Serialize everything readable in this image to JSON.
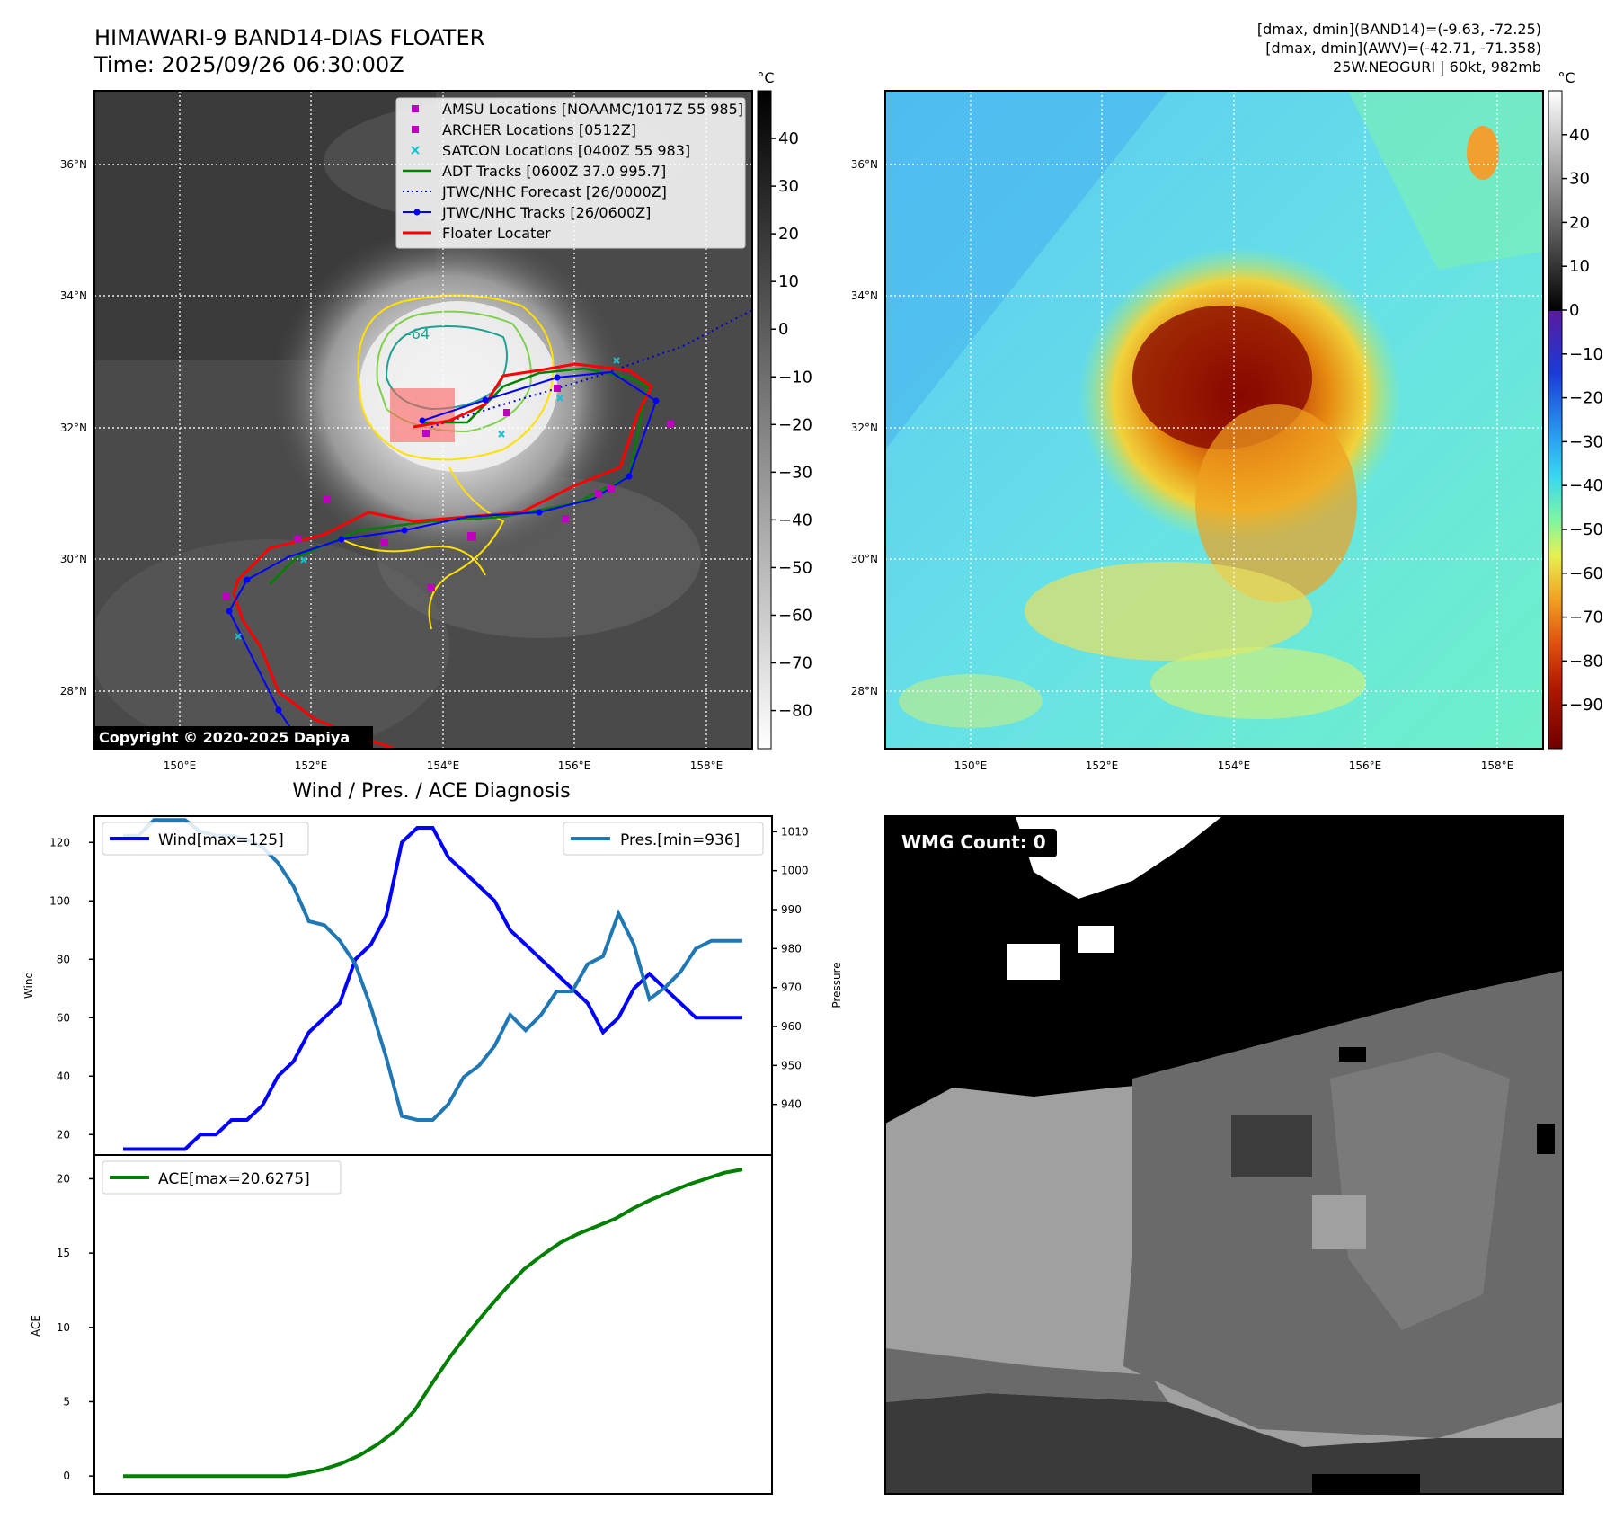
{
  "header": {
    "title_line1": "HIMAWARI-9 BAND14-DIAS FLOATER",
    "title_line2": "Time: 2025/09/26 06:30:00Z",
    "info_line1": "[dmax, dmin](BAND14)=(-9.63, -72.25)",
    "info_line2": "[dmax, dmin](AWV)=(-42.71, -71.358)",
    "info_line3": "25W.NEOGURI | 60kt, 982mb"
  },
  "map": {
    "lat_labels": [
      "36°N",
      "34°N",
      "32°N",
      "30°N",
      "28°N"
    ],
    "lon_labels": [
      "150°E",
      "152°E",
      "154°E",
      "156°E",
      "158°E"
    ],
    "contour_label": "-64",
    "copyright": "Copyright © 2020-2025 Dapiya",
    "legend": [
      {
        "label": "AMSU Locations [NOAAMC/1017Z 55 985]",
        "icon": "square-marker",
        "color": "#bf00bf"
      },
      {
        "label": "ARCHER Locations [0512Z]",
        "icon": "square-marker",
        "color": "#bf00bf"
      },
      {
        "label": "SATCON Locations [0400Z 55 983]",
        "icon": "x-marker",
        "color": "#17becf"
      },
      {
        "label": "ADT Tracks [0600Z 37.0 995.7]",
        "icon": "solid-line",
        "color": "#008000"
      },
      {
        "label": "JTWC/NHC Forecast [26/0000Z]",
        "icon": "dotted-line",
        "color": "#0000cc"
      },
      {
        "label": "JTWC/NHC Tracks [26/0600Z]",
        "icon": "line-dot",
        "color": "#0000ff"
      },
      {
        "label": "Floater Locater",
        "icon": "solid-line",
        "color": "#ff0000"
      }
    ]
  },
  "colorbar_gray": {
    "unit": "°C",
    "ticks": [
      "40",
      "30",
      "20",
      "10",
      "0",
      "−10",
      "−20",
      "−30",
      "−40",
      "−50",
      "−60",
      "−70",
      "−80"
    ]
  },
  "colorbar_color": {
    "unit": "°C",
    "ticks": [
      "40",
      "30",
      "20",
      "10",
      "0",
      "−10",
      "−20",
      "−30",
      "−40",
      "−50",
      "−60",
      "−70",
      "−80",
      "−90"
    ]
  },
  "wmg": {
    "label": "WMG Count: 0"
  },
  "chart_data": [
    {
      "type": "line",
      "title": "Wind / Pres. / ACE Diagnosis",
      "ylabel": "Wind",
      "ylabel_right": "Pressure",
      "ylim": [
        13,
        129
      ],
      "ylim_right": [
        927,
        1014
      ],
      "yticks": [
        "20",
        "40",
        "60",
        "80",
        "100",
        "120"
      ],
      "yticks_right": [
        "940",
        "950",
        "960",
        "970",
        "980",
        "990",
        "1000",
        "1010"
      ],
      "series": [
        {
          "name": "Wind",
          "legend": "Wind[max=125]",
          "color": "#0000ff",
          "values": [
            15,
            15,
            15,
            15,
            15,
            20,
            20,
            25,
            25,
            30,
            40,
            45,
            55,
            60,
            65,
            80,
            85,
            95,
            120,
            125,
            125,
            115,
            110,
            105,
            100,
            90,
            85,
            80,
            75,
            70,
            65,
            55,
            60,
            70,
            75,
            70,
            65,
            60,
            60,
            60,
            60
          ]
        },
        {
          "name": "Pressure",
          "legend": "Pres.[min=936]",
          "color": "#1f77b4",
          "axis": "right",
          "values": [
            1009,
            1009,
            1013,
            1013,
            1013,
            1010,
            1009,
            1009,
            1008,
            1006,
            1002,
            996,
            987,
            986,
            982,
            976,
            965,
            952,
            937,
            936,
            936,
            940,
            947,
            950,
            955,
            963,
            959,
            963,
            969,
            969,
            976,
            978,
            989,
            981,
            967,
            970,
            974,
            980,
            982,
            982,
            982
          ]
        }
      ]
    },
    {
      "type": "line",
      "title": "",
      "ylabel": "ACE",
      "ylim": [
        -1.2,
        21.6
      ],
      "yticks": [
        "0",
        "5",
        "10",
        "15",
        "20"
      ],
      "series": [
        {
          "name": "ACE",
          "legend": "ACE[max=20.6275]",
          "color": "#008000",
          "values": [
            0,
            0,
            0,
            0,
            0,
            0,
            0,
            0,
            0,
            0,
            0.2,
            0.45,
            0.85,
            1.4,
            2.15,
            3.1,
            4.4,
            6.3,
            8.1,
            9.7,
            11.2,
            12.6,
            13.9,
            14.85,
            15.7,
            16.3,
            16.8,
            17.3,
            18.0,
            18.6,
            19.1,
            19.6,
            20.0,
            20.4,
            20.6275
          ]
        }
      ]
    }
  ]
}
